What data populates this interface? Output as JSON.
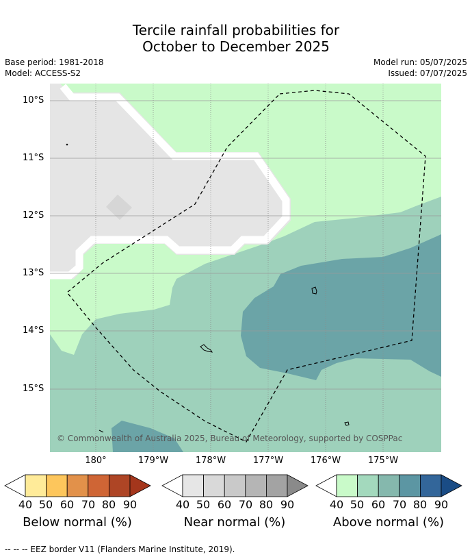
{
  "title_line1": "Tercile rainfall probabilities for",
  "title_line2": "October to December 2025",
  "base_period": "Base period: 1981-2018",
  "model": "Model: ACCESS-S2",
  "model_run": "Model run: 05/07/2025",
  "issued": "Issued: 07/07/2025",
  "lat_labels": [
    "10°S",
    "11°S",
    "12°S",
    "13°S",
    "14°S",
    "15°S"
  ],
  "lon_labels": [
    "180°",
    "179°W",
    "178°W",
    "177°W",
    "176°W",
    "175°W"
  ],
  "copyright": "© Commonwealth of Australia 2025, Bureau of Meteorology, supported by COSPPac",
  "colorbars": [
    {
      "label": "Below normal (%)",
      "ticks": [
        "40",
        "50",
        "60",
        "70",
        "80",
        "90"
      ],
      "colors": [
        "#ffffff",
        "#ffeb99",
        "#fdc65c",
        "#e2914a",
        "#cf6535",
        "#ae4525",
        "#a4361c"
      ]
    },
    {
      "label": "Near normal (%)",
      "ticks": [
        "40",
        "50",
        "60",
        "70",
        "80",
        "90"
      ],
      "colors": [
        "#ffffff",
        "#e6e6e6",
        "#d9d9d9",
        "#c9c9c9",
        "#b5b5b5",
        "#a3a3a3",
        "#8a8a8a"
      ]
    },
    {
      "label": "Above normal (%)",
      "ticks": [
        "40",
        "50",
        "60",
        "70",
        "80",
        "90"
      ],
      "colors": [
        "#ffffff",
        "#c9fac9",
        "#a3d9bd",
        "#85b8ad",
        "#5c96a3",
        "#33669a",
        "#1a4c85"
      ]
    }
  ],
  "eez_note": "--  --  -- EEZ border V11 (Flanders Marine Institute, 2019).",
  "map_colors": {
    "near_normal": "#e5e5e5",
    "above_50": "#c9fac9",
    "above_60": "#9ed1bb",
    "above_70": "#6ba4a7"
  }
}
